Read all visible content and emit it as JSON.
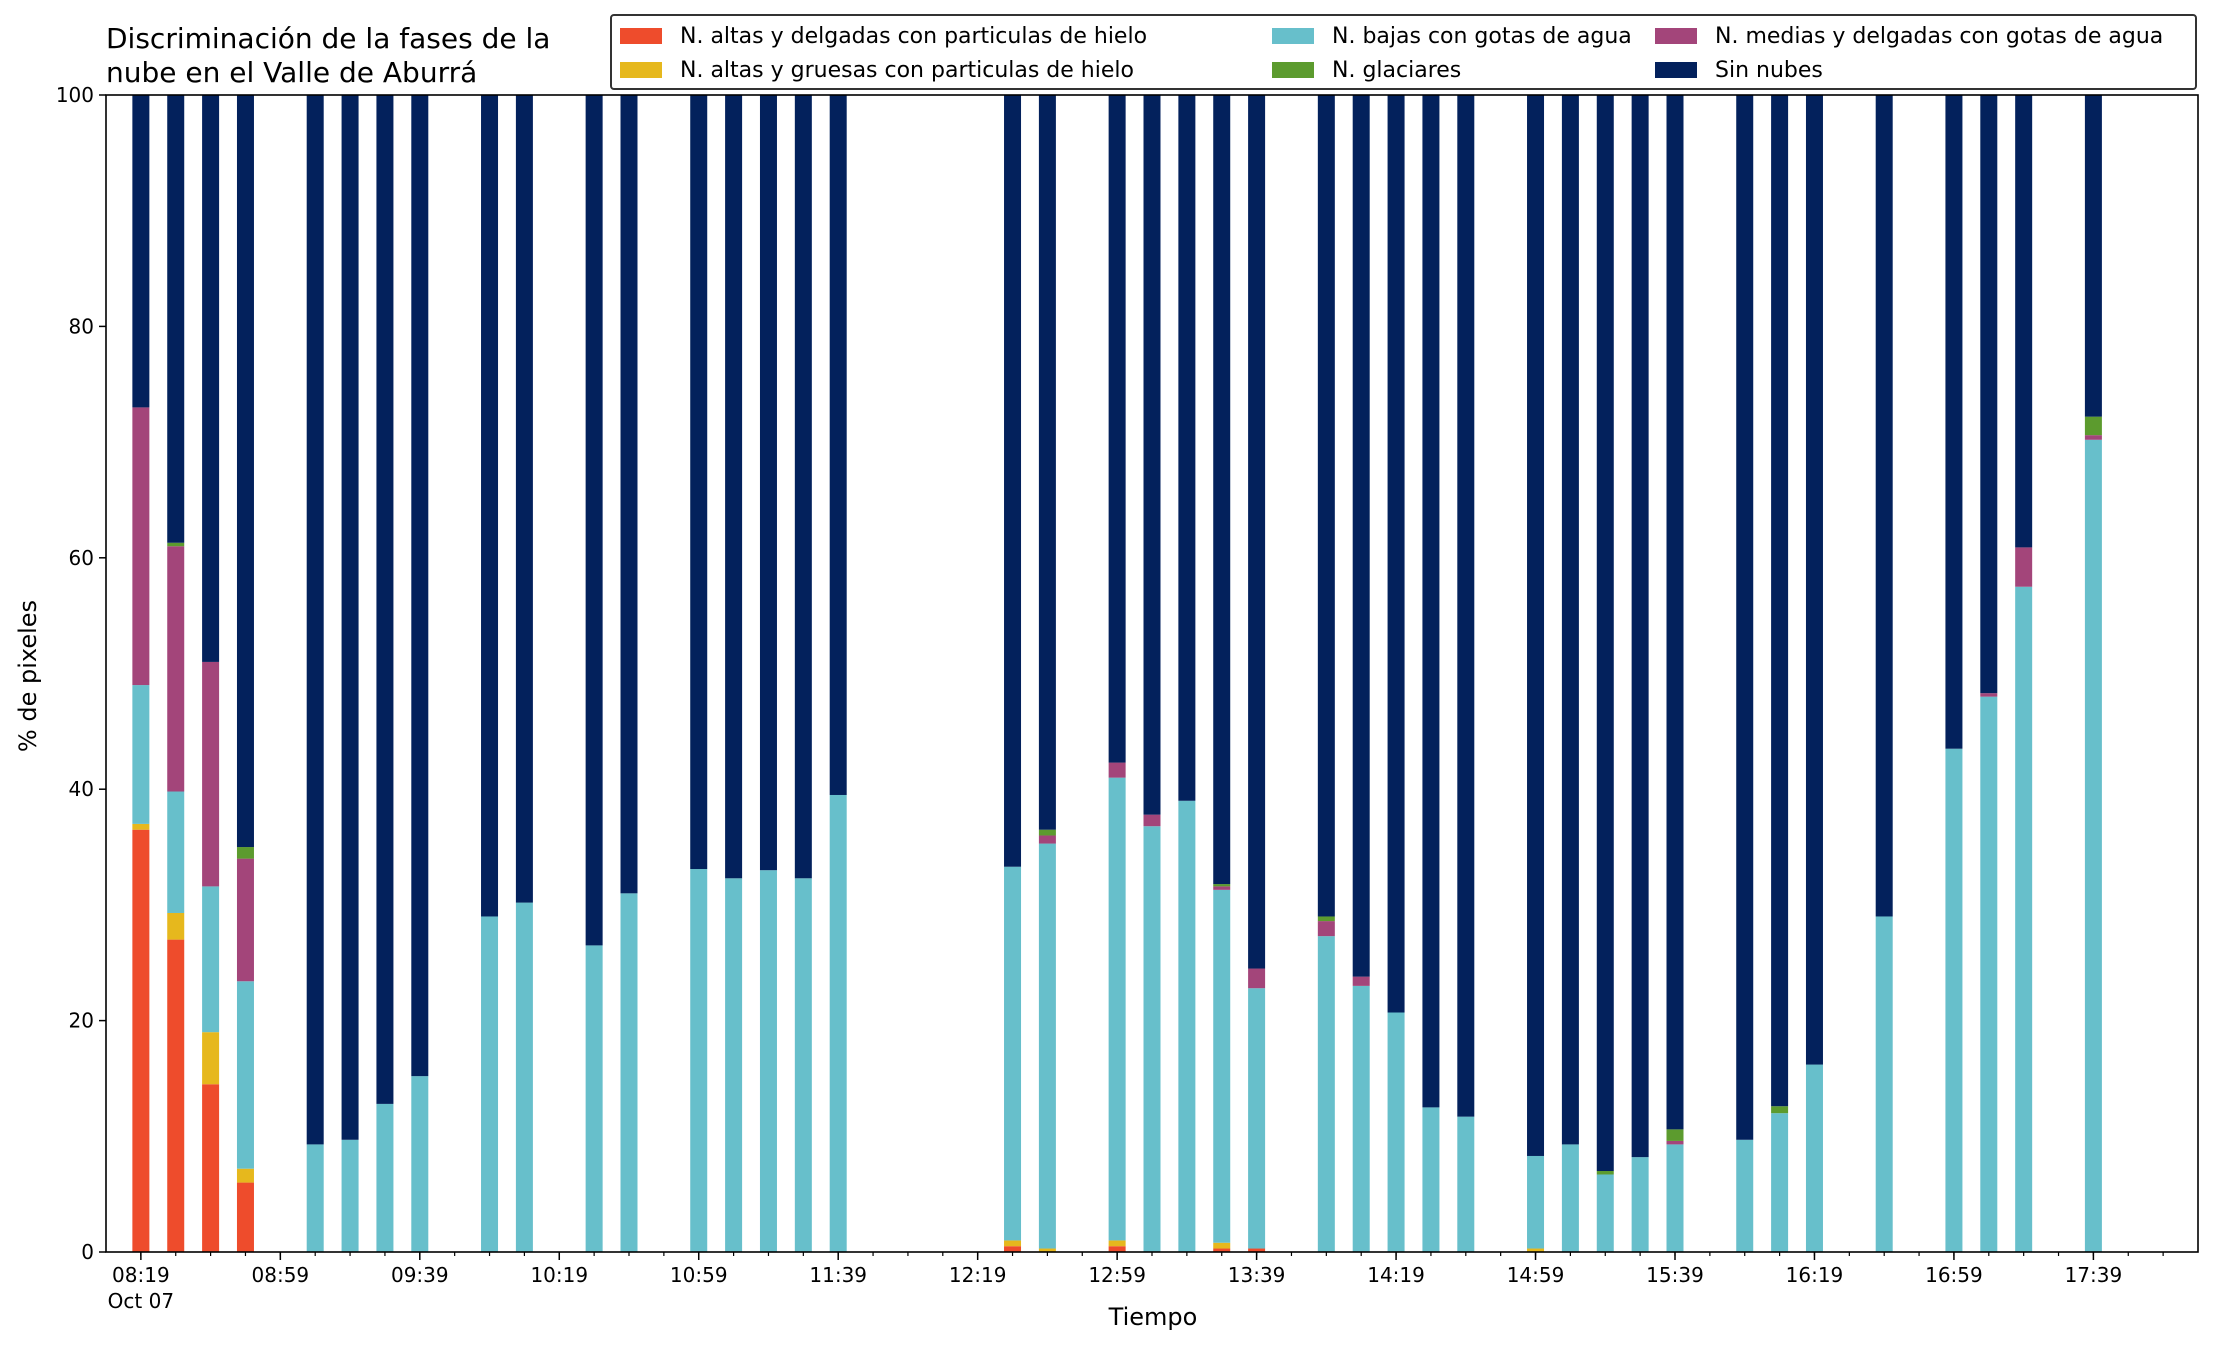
{
  "title_lines": [
    "Discriminación de la fases de la",
    "nube en el Valle de Aburrá"
  ],
  "chart_data": {
    "type": "bar",
    "stacked": true,
    "xlabel": "Tiempo",
    "ylabel": "% de pixeles",
    "ylim": [
      0,
      100
    ],
    "yticks": [
      0,
      20,
      40,
      60,
      80,
      100
    ],
    "xticks": [
      {
        "label": "08:19",
        "sub": "Oct 07",
        "time": "08:19"
      },
      {
        "label": "08:59",
        "time": "08:59"
      },
      {
        "label": "09:39",
        "time": "09:39"
      },
      {
        "label": "10:19",
        "time": "10:19"
      },
      {
        "label": "10:59",
        "time": "10:59"
      },
      {
        "label": "11:39",
        "time": "11:39"
      },
      {
        "label": "12:19",
        "time": "12:19"
      },
      {
        "label": "12:59",
        "time": "12:59"
      },
      {
        "label": "13:39",
        "time": "13:39"
      },
      {
        "label": "14:19",
        "time": "14:19"
      },
      {
        "label": "14:59",
        "time": "14:59"
      },
      {
        "label": "15:39",
        "time": "15:39"
      },
      {
        "label": "16:19",
        "time": "16:19"
      },
      {
        "label": "16:59",
        "time": "16:59"
      },
      {
        "label": "17:39",
        "time": "17:39"
      }
    ],
    "minor_tick_minutes": 10,
    "x_start": "08:19",
    "x_end": "17:59",
    "legend_placement": "top-right",
    "times": [
      "08:19",
      "08:29",
      "08:39",
      "08:49",
      "09:09",
      "09:19",
      "09:29",
      "09:39",
      "09:59",
      "10:09",
      "10:29",
      "10:39",
      "10:59",
      "11:09",
      "11:19",
      "11:29",
      "11:39",
      "12:29",
      "12:39",
      "12:59",
      "13:09",
      "13:19",
      "13:29",
      "13:39",
      "13:59",
      "14:09",
      "14:19",
      "14:29",
      "14:39",
      "14:59",
      "15:09",
      "15:19",
      "15:29",
      "15:39",
      "15:59",
      "16:09",
      "16:19",
      "16:39",
      "16:59",
      "17:09",
      "17:19",
      "17:39"
    ],
    "series": [
      {
        "name": "N. altas y delgadas con particulas de hielo",
        "color": "#ee4c2c",
        "values": [
          36.5,
          27,
          14.5,
          6,
          0,
          0,
          0,
          0,
          0,
          0,
          0,
          0,
          0,
          0,
          0,
          0,
          0,
          0.5,
          0,
          0.5,
          0,
          0,
          0.3,
          0.3,
          0,
          0,
          0,
          0,
          0,
          0,
          0,
          0,
          0,
          0,
          0,
          0,
          0,
          0,
          0,
          0,
          0,
          0
        ]
      },
      {
        "name": "N. altas y gruesas con particulas de hielo",
        "color": "#e6b81d",
        "values": [
          0.5,
          2.3,
          4.5,
          1.2,
          0,
          0,
          0,
          0,
          0,
          0,
          0,
          0,
          0,
          0,
          0,
          0,
          0,
          0.5,
          0.3,
          0.5,
          0,
          0,
          0.5,
          0,
          0,
          0,
          0,
          0,
          0,
          0.3,
          0,
          0,
          0,
          0,
          0,
          0,
          0,
          0,
          0,
          0,
          0,
          0
        ]
      },
      {
        "name": "N. bajas con gotas de agua",
        "color": "#67bfcb",
        "values": [
          12,
          10.5,
          12.6,
          16.2,
          9.3,
          9.7,
          12.8,
          15.2,
          29,
          30.2,
          26.5,
          31,
          33.1,
          32.3,
          33,
          32.3,
          39.5,
          32.3,
          35,
          40,
          36.8,
          39,
          30.5,
          22.5,
          27.3,
          23,
          20.7,
          12.5,
          11.7,
          8,
          9.3,
          6.7,
          8.2,
          9.3,
          9.7,
          12,
          16.2,
          29,
          43.5,
          48,
          57.5,
          70.2
        ]
      },
      {
        "name": "N. medias y delgadas con gotas de agua",
        "color": "#a3457a",
        "values": [
          24,
          21.2,
          19.4,
          10.6,
          0,
          0,
          0,
          0,
          0,
          0,
          0,
          0,
          0,
          0,
          0,
          0,
          0,
          0,
          0.7,
          1.3,
          1.0,
          0,
          0.3,
          1.7,
          1.3,
          0.8,
          0,
          0,
          0,
          0,
          0,
          0,
          0,
          0.3,
          0,
          0,
          0,
          0,
          0,
          0.3,
          3.4,
          0.4
        ]
      },
      {
        "name": "N. glaciares",
        "color": "#5c9b2e",
        "values": [
          0,
          0.3,
          0,
          1,
          0,
          0,
          0,
          0,
          0,
          0,
          0,
          0,
          0,
          0,
          0,
          0,
          0,
          0,
          0.5,
          0,
          0,
          0,
          0.2,
          0,
          0.4,
          0,
          0,
          0,
          0,
          0,
          0,
          0.3,
          0,
          1.0,
          0,
          0.6,
          0,
          0,
          0,
          0,
          0,
          1.6
        ]
      },
      {
        "name": "Sin nubes",
        "color": "#03215c",
        "values": [
          27,
          38.7,
          49,
          65,
          90.7,
          90.3,
          87.2,
          84.8,
          71,
          69.8,
          73.5,
          69,
          66.9,
          67.7,
          67,
          67.7,
          60.5,
          66.7,
          63.5,
          57.7,
          62.2,
          61,
          68.2,
          75.5,
          71,
          76.2,
          79.3,
          87.5,
          88.3,
          91.7,
          90.7,
          93,
          91.8,
          89.4,
          90.3,
          87.4,
          83.8,
          71,
          56.5,
          51.7,
          39.1,
          27.8
        ]
      }
    ]
  },
  "legend_items": [
    {
      "label": "N. altas y delgadas con particulas de hielo",
      "color": "#ee4c2c"
    },
    {
      "label": "N. bajas con gotas de agua",
      "color": "#67bfcb"
    },
    {
      "label": "N. medias y delgadas con gotas de agua",
      "color": "#a3457a"
    },
    {
      "label": "N. altas y gruesas con particulas de hielo",
      "color": "#e6b81d"
    },
    {
      "label": "N. glaciares",
      "color": "#5c9b2e"
    },
    {
      "label": "Sin nubes",
      "color": "#03215c"
    }
  ]
}
